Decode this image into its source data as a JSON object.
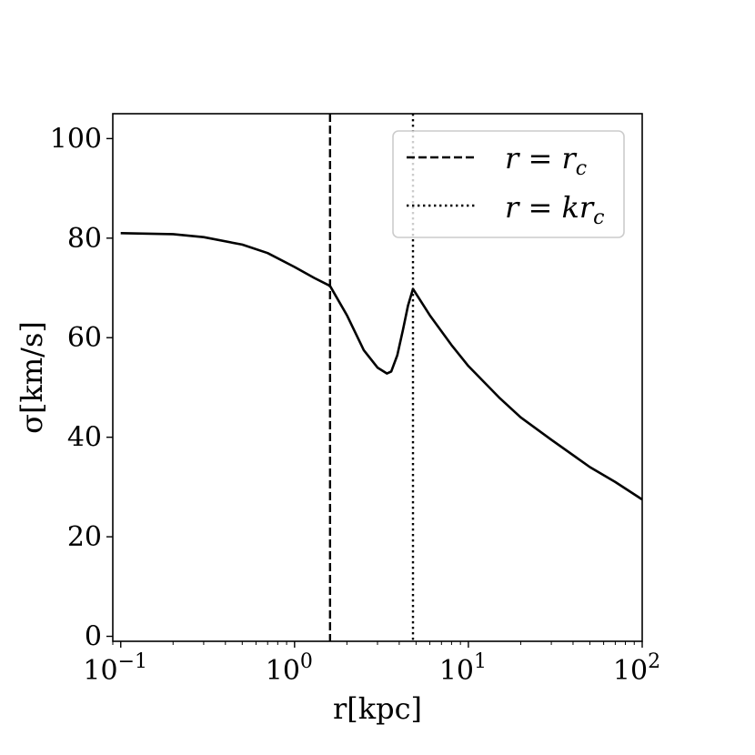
{
  "chart_data": {
    "type": "line",
    "title": "",
    "xlabel": "r[kpc]",
    "ylabel": "σ[km/s]",
    "xscale": "log",
    "xlim": [
      0.09,
      100
    ],
    "ylim": [
      -1,
      105
    ],
    "grid": false,
    "legend_position": "top-right",
    "x_ticks": [
      0.1,
      1,
      10,
      100
    ],
    "x_tick_labels": [
      "10^-1",
      "10^0",
      "10^1",
      "10^2"
    ],
    "y_ticks": [
      0,
      20,
      40,
      60,
      80,
      100
    ],
    "y_tick_labels": [
      "0",
      "20",
      "40",
      "60",
      "80",
      "100"
    ],
    "series": [
      {
        "style": "solid",
        "color": "#000000",
        "x": [
          0.1,
          0.2,
          0.3,
          0.5,
          0.7,
          1.0,
          1.3,
          1.6,
          2.0,
          2.5,
          3.0,
          3.4,
          3.6,
          3.9,
          4.2,
          4.5,
          4.8,
          6,
          8,
          10,
          15,
          20,
          30,
          50,
          70,
          100
        ],
        "y": [
          81,
          80.8,
          80.2,
          78.7,
          77,
          74.2,
          72,
          70.4,
          64.5,
          57.5,
          54,
          52.8,
          53.2,
          56.5,
          61.5,
          66.5,
          69.8,
          64.5,
          58.5,
          54.3,
          48,
          44,
          39.5,
          34,
          31,
          27.5
        ]
      }
    ],
    "vlines": [
      {
        "x": 1.6,
        "style": "dashed",
        "label": "r = r",
        "label_sub": "c"
      },
      {
        "x": 4.8,
        "style": "dotted",
        "label": "r = kr",
        "label_sub": "c"
      }
    ]
  }
}
